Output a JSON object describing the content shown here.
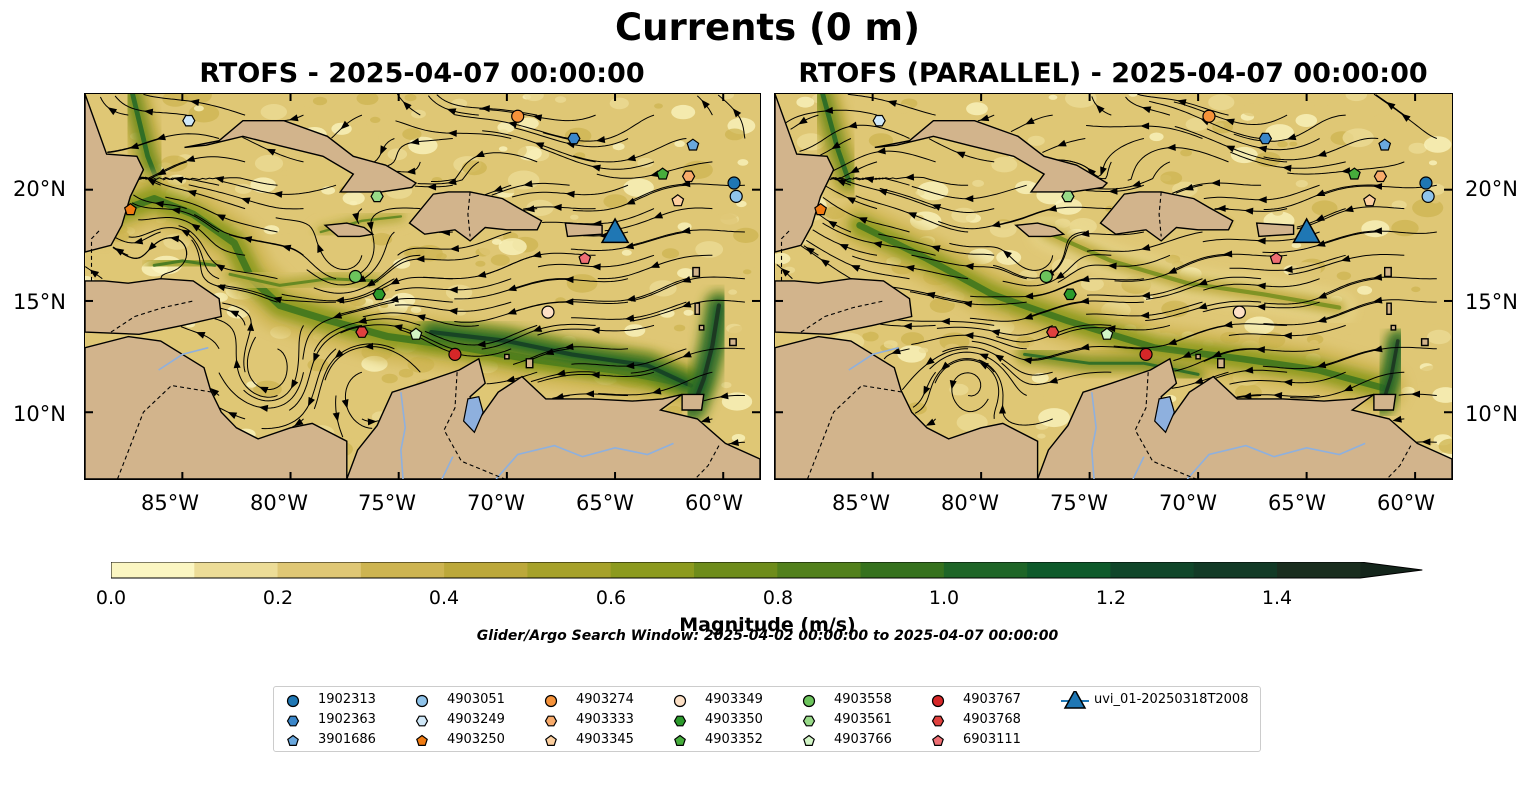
{
  "figure": {
    "title": "Currents (0 m)",
    "panels": [
      {
        "title": "RTOFS - 2025-04-07 00:00:00"
      },
      {
        "title": "RTOFS (PARALLEL) - 2025-04-07 00:00:00"
      }
    ],
    "lon_ticks": [
      "85°W",
      "80°W",
      "75°W",
      "70°W",
      "65°W",
      "60°W"
    ],
    "lat_ticks": [
      "20°N",
      "15°N",
      "10°N"
    ],
    "extent": {
      "lon": [
        -89.5,
        -58.3
      ],
      "lat": [
        7.0,
        24.3
      ]
    }
  },
  "colorbar": {
    "label": "Magnitude (m/s)",
    "ticks": [
      "0.0",
      "0.2",
      "0.4",
      "0.6",
      "0.8",
      "1.0",
      "1.2",
      "1.4"
    ],
    "range": [
      0,
      1.5
    ],
    "colors": [
      "#fbf6c2",
      "#ecdc97",
      "#dfc775",
      "#cdb451",
      "#bca83a",
      "#a6a12a",
      "#8c9a1e",
      "#6e8c1b",
      "#52801c",
      "#36721e",
      "#1e6527",
      "#0e5a2b",
      "#10462a",
      "#123a26",
      "#1a2e1f"
    ]
  },
  "search_window": "Glider/Argo Search Window: 2025-04-02 00:00:00 to 2025-04-07 00:00:00",
  "legend": [
    {
      "label": "1902313",
      "marker": "circle",
      "color": "#1f77b4"
    },
    {
      "label": "1902363",
      "marker": "hexagon",
      "color": "#3a86c9"
    },
    {
      "label": "3901686",
      "marker": "pentagon",
      "color": "#6aa8de"
    },
    {
      "label": "4903051",
      "marker": "circle",
      "color": "#8fc3ea"
    },
    {
      "label": "4903249",
      "marker": "hexagon",
      "color": "#d0e8f8"
    },
    {
      "label": "4903250",
      "marker": "pentagon",
      "color": "#f07b12"
    },
    {
      "label": "4903274",
      "marker": "circle",
      "color": "#f5923a"
    },
    {
      "label": "4903333",
      "marker": "hexagon",
      "color": "#f8ab6b"
    },
    {
      "label": "4903345",
      "marker": "pentagon",
      "color": "#fccf9f"
    },
    {
      "label": "4903349",
      "marker": "circle",
      "color": "#fde0c5"
    },
    {
      "label": "4903350",
      "marker": "hexagon",
      "color": "#2b9a2b"
    },
    {
      "label": "4903352",
      "marker": "pentagon",
      "color": "#46ad3c"
    },
    {
      "label": "4903558",
      "marker": "circle",
      "color": "#6cc45c"
    },
    {
      "label": "4903561",
      "marker": "hexagon",
      "color": "#98da88"
    },
    {
      "label": "4903766",
      "marker": "pentagon",
      "color": "#d2f5c6"
    },
    {
      "label": "4903767",
      "marker": "circle",
      "color": "#d62728"
    },
    {
      "label": "4903768",
      "marker": "hexagon",
      "color": "#e0413e"
    },
    {
      "label": "6903111",
      "marker": "pentagon",
      "color": "#ee6e73"
    },
    {
      "label": "uvi_01-20250318T2008",
      "marker": "triangle",
      "color": "#1f77b4"
    }
  ],
  "floats": [
    {
      "id": "1902313",
      "lon": -59.5,
      "lat": 20.3
    },
    {
      "id": "4903051",
      "lon": -59.4,
      "lat": 19.7
    },
    {
      "id": "1902363",
      "lon": -66.9,
      "lat": 22.3
    },
    {
      "id": "3901686",
      "lon": -61.4,
      "lat": 22.0
    },
    {
      "id": "4903249",
      "lon": -84.7,
      "lat": 23.1
    },
    {
      "id": "4903250",
      "lon": -87.4,
      "lat": 19.1
    },
    {
      "id": "4903274",
      "lon": -69.5,
      "lat": 23.3
    },
    {
      "id": "4903333",
      "lon": -61.6,
      "lat": 20.6
    },
    {
      "id": "4903345",
      "lon": -62.1,
      "lat": 19.5
    },
    {
      "id": "4903349",
      "lon": -68.1,
      "lat": 14.5
    },
    {
      "id": "4903350",
      "lon": -75.9,
      "lat": 15.3
    },
    {
      "id": "4903352",
      "lon": -62.8,
      "lat": 20.7
    },
    {
      "id": "4903558",
      "lon": -77.0,
      "lat": 16.1
    },
    {
      "id": "4903561",
      "lon": -76.0,
      "lat": 19.7
    },
    {
      "id": "4903766",
      "lon": -74.2,
      "lat": 13.5
    },
    {
      "id": "4903767",
      "lon": -72.4,
      "lat": 12.6
    },
    {
      "id": "4903768",
      "lon": -76.7,
      "lat": 13.6
    },
    {
      "id": "6903111",
      "lon": -66.4,
      "lat": 16.9
    },
    {
      "id": "uvi_01-20250318T2008",
      "lon": -65.0,
      "lat": 18.1
    }
  ]
}
